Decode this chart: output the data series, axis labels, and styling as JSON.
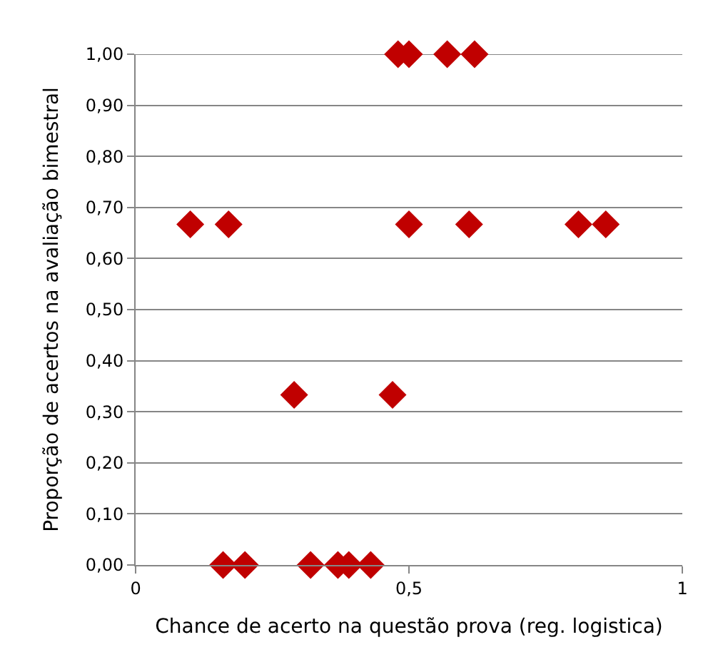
{
  "chart_data": {
    "type": "scatter",
    "xlabel": "Chance de acerto na questão prova (reg. logistica)",
    "ylabel": "Proporção de acertos na avaliação bimestral",
    "x": [
      0.48,
      0.5,
      0.57,
      0.62,
      0.1,
      0.17,
      0.5,
      0.61,
      0.81,
      0.86,
      0.29,
      0.47,
      0.16,
      0.2,
      0.32,
      0.37,
      0.39,
      0.43
    ],
    "series": [
      {
        "color": "#c00000",
        "values": [
          1,
          1,
          1,
          1,
          0.667,
          0.667,
          0.667,
          0.667,
          0.667,
          0.667,
          0.333,
          0.333,
          0,
          0,
          0,
          0,
          0,
          0
        ]
      }
    ],
    "xlim": [
      0,
      1
    ],
    "xticks": [
      0,
      {
        "value": 0.5,
        "label": "0,5"
      },
      1
    ],
    "ylim": [
      0,
      1
    ],
    "yticks": [
      {
        "value": 0,
        "label": "0,00"
      },
      {
        "value": 0.1,
        "label": "0,10"
      },
      {
        "value": 0.2,
        "label": "0,20"
      },
      {
        "value": 0.3,
        "label": "0,30"
      },
      {
        "value": 0.4,
        "label": "0,40"
      },
      {
        "value": 0.5,
        "label": "0,50"
      },
      {
        "value": 0.6,
        "label": "0,60"
      },
      {
        "value": 0.7,
        "label": "0,70"
      },
      {
        "value": 0.8,
        "label": "0,80"
      },
      {
        "value": 0.9,
        "label": "0,90"
      },
      {
        "value": 1,
        "label": "1,00"
      }
    ],
    "grid": "y",
    "marker": "diamond"
  }
}
